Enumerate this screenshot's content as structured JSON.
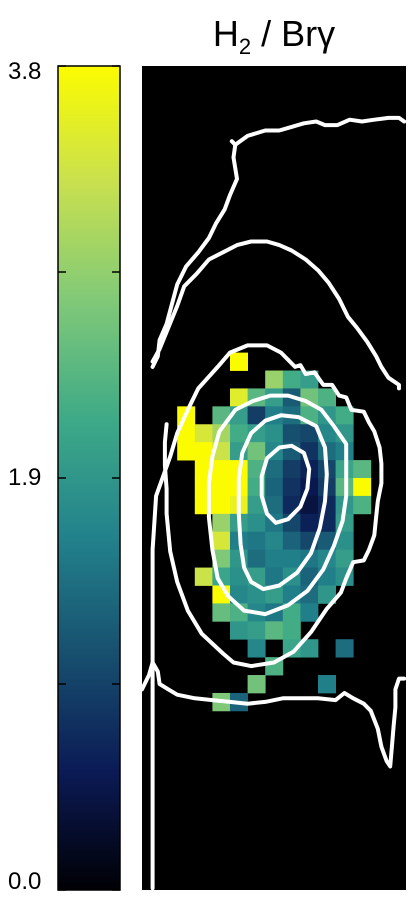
{
  "chart_data": {
    "type": "heatmap",
    "title_main": "H",
    "title_sub": "2",
    "title_rest": " / Brγ",
    "colorbar": {
      "range": [
        0.0,
        3.8
      ],
      "tick_labels": [
        "3.8",
        "1.9",
        "0.0"
      ],
      "tick_values": [
        3.8,
        1.9,
        0.0
      ],
      "minor_tick_values": [
        2.85,
        0.95
      ],
      "colormap": [
        "#000004",
        "#0b1a55",
        "#174f6e",
        "#22828c",
        "#3eaa87",
        "#80c978",
        "#c8e04f",
        "#fcfc00"
      ]
    },
    "grid": {
      "cols": 15,
      "rows": 46
    },
    "pixels": [
      [
        5,
        16,
        3.8
      ],
      [
        7,
        17,
        2.9
      ],
      [
        8,
        17,
        2.2
      ],
      [
        9,
        17,
        2.0
      ],
      [
        5,
        18,
        3.5
      ],
      [
        6,
        18,
        2.4
      ],
      [
        7,
        18,
        2.0
      ],
      [
        8,
        18,
        1.2
      ],
      [
        9,
        18,
        2.6
      ],
      [
        10,
        18,
        2.3
      ],
      [
        2,
        19,
        3.8
      ],
      [
        4,
        19,
        2.4
      ],
      [
        5,
        19,
        2.0
      ],
      [
        6,
        19,
        0.9
      ],
      [
        7,
        19,
        1.6
      ],
      [
        8,
        19,
        1.4
      ],
      [
        9,
        19,
        2.3
      ],
      [
        10,
        19,
        1.9
      ],
      [
        11,
        19,
        2.2
      ],
      [
        2,
        20,
        3.8
      ],
      [
        3,
        20,
        3.4
      ],
      [
        4,
        20,
        3.0
      ],
      [
        5,
        20,
        2.2
      ],
      [
        6,
        20,
        2.0
      ],
      [
        7,
        20,
        1.8
      ],
      [
        8,
        20,
        1.1
      ],
      [
        9,
        20,
        1.0
      ],
      [
        10,
        20,
        1.7
      ],
      [
        11,
        20,
        1.9
      ],
      [
        2,
        21,
        3.8
      ],
      [
        3,
        21,
        3.8
      ],
      [
        4,
        21,
        3.3
      ],
      [
        5,
        21,
        2.0
      ],
      [
        6,
        21,
        2.6
      ],
      [
        7,
        21,
        1.7
      ],
      [
        8,
        21,
        1.2
      ],
      [
        9,
        21,
        0.8
      ],
      [
        10,
        21,
        1.4
      ],
      [
        11,
        21,
        1.6
      ],
      [
        3,
        22,
        3.8
      ],
      [
        4,
        22,
        3.8
      ],
      [
        5,
        22,
        3.8
      ],
      [
        6,
        22,
        2.3
      ],
      [
        7,
        22,
        1.4
      ],
      [
        8,
        22,
        0.9
      ],
      [
        9,
        22,
        0.6
      ],
      [
        10,
        22,
        1.0
      ],
      [
        11,
        22,
        2.1
      ],
      [
        12,
        22,
        2.4
      ],
      [
        3,
        23,
        3.8
      ],
      [
        4,
        23,
        3.8
      ],
      [
        5,
        23,
        3.8
      ],
      [
        6,
        23,
        2.2
      ],
      [
        7,
        23,
        1.3
      ],
      [
        8,
        23,
        0.8
      ],
      [
        9,
        23,
        0.5
      ],
      [
        10,
        23,
        0.9
      ],
      [
        11,
        23,
        2.4
      ],
      [
        12,
        23,
        3.8
      ],
      [
        3,
        24,
        3.8
      ],
      [
        4,
        24,
        3.8
      ],
      [
        5,
        24,
        3.6
      ],
      [
        6,
        24,
        2.0
      ],
      [
        7,
        24,
        1.4
      ],
      [
        8,
        24,
        0.7
      ],
      [
        9,
        24,
        0.4
      ],
      [
        10,
        24,
        0.7
      ],
      [
        11,
        24,
        1.9
      ],
      [
        12,
        24,
        2.3
      ],
      [
        4,
        25,
        2.9
      ],
      [
        5,
        25,
        2.0
      ],
      [
        6,
        25,
        1.8
      ],
      [
        7,
        25,
        1.5
      ],
      [
        8,
        25,
        1.0
      ],
      [
        9,
        25,
        0.6
      ],
      [
        10,
        25,
        0.7
      ],
      [
        11,
        25,
        2.0
      ],
      [
        4,
        26,
        3.4
      ],
      [
        5,
        26,
        1.6
      ],
      [
        6,
        26,
        1.5
      ],
      [
        7,
        26,
        1.7
      ],
      [
        8,
        26,
        1.3
      ],
      [
        9,
        26,
        1.0
      ],
      [
        10,
        26,
        1.2
      ],
      [
        11,
        26,
        1.8
      ],
      [
        4,
        27,
        2.7
      ],
      [
        5,
        27,
        1.9
      ],
      [
        6,
        27,
        1.4
      ],
      [
        7,
        27,
        1.6
      ],
      [
        8,
        27,
        1.6
      ],
      [
        9,
        27,
        1.5
      ],
      [
        10,
        27,
        1.7
      ],
      [
        11,
        27,
        2.0
      ],
      [
        3,
        28,
        3.3
      ],
      [
        4,
        28,
        2.1
      ],
      [
        5,
        28,
        1.8
      ],
      [
        6,
        28,
        2.0
      ],
      [
        7,
        28,
        1.5
      ],
      [
        8,
        28,
        1.8
      ],
      [
        9,
        28,
        1.3
      ],
      [
        10,
        28,
        1.6
      ],
      [
        11,
        28,
        1.8
      ],
      [
        4,
        29,
        3.8
      ],
      [
        5,
        29,
        1.7
      ],
      [
        6,
        29,
        1.8
      ],
      [
        7,
        29,
        2.0
      ],
      [
        8,
        29,
        1.6
      ],
      [
        9,
        29,
        1.4
      ],
      [
        10,
        29,
        1.9
      ],
      [
        4,
        30,
        2.5
      ],
      [
        5,
        30,
        2.3
      ],
      [
        6,
        30,
        1.7
      ],
      [
        7,
        30,
        1.5
      ],
      [
        8,
        30,
        2.2
      ],
      [
        9,
        30,
        1.6
      ],
      [
        5,
        31,
        1.9
      ],
      [
        6,
        31,
        2.0
      ],
      [
        7,
        31,
        2.4
      ],
      [
        8,
        31,
        2.2
      ],
      [
        6,
        32,
        1.7
      ],
      [
        8,
        32,
        2.1
      ],
      [
        9,
        32,
        1.9
      ],
      [
        11,
        32,
        1.4
      ],
      [
        7,
        33,
        2.3
      ],
      [
        6,
        34,
        2.6
      ],
      [
        10,
        34,
        1.6
      ],
      [
        4,
        35,
        2.7
      ],
      [
        5,
        35,
        1.3
      ]
    ],
    "contours": [
      [
        [
          0.6,
          45.9
        ],
        [
          0.6,
          27.0
        ],
        [
          0.8,
          24.0
        ],
        [
          1.6,
          21.8
        ],
        [
          2.0,
          20.5
        ],
        [
          2.6,
          19.2
        ],
        [
          3.2,
          18.0
        ],
        [
          4.3,
          16.8
        ],
        [
          5.0,
          16.0
        ],
        [
          6.0,
          15.6
        ],
        [
          7.1,
          15.6
        ],
        [
          7.9,
          16.0
        ],
        [
          8.7,
          16.8
        ],
        [
          9.0,
          16.7
        ],
        [
          9.3,
          17.2
        ],
        [
          9.8,
          17.1
        ],
        [
          10.3,
          17.8
        ],
        [
          10.8,
          17.8
        ],
        [
          11.2,
          18.4
        ],
        [
          11.6,
          18.5
        ],
        [
          11.9,
          19.2
        ],
        [
          12.6,
          19.3
        ],
        [
          12.9,
          19.9
        ],
        [
          13.2,
          20.4
        ],
        [
          13.5,
          21.3
        ],
        [
          13.6,
          22.2
        ],
        [
          13.6,
          23.3
        ],
        [
          13.4,
          24.3
        ],
        [
          13.3,
          25.2
        ],
        [
          13.2,
          26.2
        ],
        [
          12.9,
          27.0
        ],
        [
          12.6,
          27.6
        ],
        [
          12.0,
          27.7
        ],
        [
          11.6,
          28.6
        ],
        [
          11.3,
          29.4
        ],
        [
          10.5,
          30.3
        ],
        [
          9.6,
          31.6
        ],
        [
          8.6,
          32.7
        ],
        [
          7.5,
          33.3
        ],
        [
          6.2,
          33.5
        ],
        [
          5.2,
          33.3
        ],
        [
          4.6,
          32.8
        ],
        [
          3.4,
          31.7
        ],
        [
          2.6,
          30.4
        ],
        [
          2.0,
          28.8
        ],
        [
          1.6,
          27.1
        ],
        [
          1.4,
          25.0
        ],
        [
          1.4,
          23.6
        ],
        [
          1.3,
          22.3
        ],
        [
          1.3,
          21.0
        ],
        [
          1.4,
          20.0
        ]
      ],
      [
        [
          0.6,
          16.5
        ],
        [
          1.0,
          15.8
        ],
        [
          1.5,
          14.6
        ],
        [
          2.0,
          13.4
        ],
        [
          2.4,
          12.3
        ],
        [
          3.1,
          11.6
        ],
        [
          3.8,
          10.8
        ],
        [
          4.6,
          10.4
        ],
        [
          5.4,
          10.0
        ],
        [
          6.2,
          9.8
        ],
        [
          7.1,
          9.8
        ],
        [
          7.8,
          10.0
        ],
        [
          8.5,
          10.3
        ],
        [
          9.3,
          10.8
        ],
        [
          10.0,
          11.4
        ],
        [
          10.6,
          12.1
        ],
        [
          11.2,
          13.0
        ],
        [
          11.7,
          14.0
        ],
        [
          12.2,
          14.6
        ],
        [
          12.8,
          15.4
        ],
        [
          13.3,
          16.2
        ],
        [
          13.6,
          16.8
        ],
        [
          14.0,
          17.4
        ],
        [
          14.6,
          17.8
        ],
        [
          14.6,
          18.0
        ]
      ],
      [
        [
          5.1,
          4.2
        ],
        [
          5.3,
          4.4
        ],
        [
          5.2,
          5.1
        ],
        [
          5.4,
          6.3
        ],
        [
          5.0,
          7.2
        ],
        [
          4.7,
          8.0
        ],
        [
          4.2,
          8.8
        ],
        [
          3.8,
          9.6
        ],
        [
          3.2,
          10.4
        ],
        [
          2.5,
          11.2
        ],
        [
          2.0,
          12.2
        ],
        [
          1.7,
          13.3
        ],
        [
          1.4,
          14.4
        ],
        [
          1.0,
          15.3
        ],
        [
          0.9,
          16.2
        ],
        [
          0.6,
          16.8
        ]
      ],
      [
        [
          5.3,
          4.4
        ],
        [
          6.0,
          3.9
        ],
        [
          7.0,
          3.6
        ],
        [
          7.8,
          3.6
        ],
        [
          8.5,
          3.4
        ],
        [
          9.2,
          3.2
        ],
        [
          9.9,
          3.1
        ],
        [
          10.4,
          3.3
        ],
        [
          11.1,
          3.3
        ],
        [
          11.8,
          3.0
        ],
        [
          12.5,
          3.1
        ],
        [
          13.2,
          3.0
        ],
        [
          14.0,
          2.9
        ],
        [
          14.6,
          2.9
        ],
        [
          14.9,
          3.1
        ]
      ],
      [
        [
          3.8,
          23.3
        ],
        [
          4.0,
          21.8
        ],
        [
          4.4,
          20.4
        ],
        [
          5.3,
          19.2
        ],
        [
          6.3,
          18.7
        ],
        [
          7.3,
          18.4
        ],
        [
          8.3,
          18.4
        ],
        [
          9.3,
          18.7
        ],
        [
          10.2,
          19.2
        ],
        [
          10.9,
          20.1
        ],
        [
          11.6,
          21.1
        ],
        [
          11.6,
          22.5
        ],
        [
          11.6,
          24.0
        ],
        [
          11.4,
          25.4
        ],
        [
          10.9,
          26.8
        ],
        [
          10.3,
          28.1
        ],
        [
          9.4,
          29.3
        ],
        [
          8.3,
          30.1
        ],
        [
          7.0,
          30.6
        ],
        [
          5.8,
          30.4
        ],
        [
          4.9,
          29.6
        ],
        [
          4.3,
          28.6
        ],
        [
          4.0,
          27.0
        ],
        [
          3.8,
          25.2
        ],
        [
          3.8,
          23.3
        ]
      ],
      [
        [
          5.5,
          23.0
        ],
        [
          5.7,
          21.6
        ],
        [
          6.2,
          20.5
        ],
        [
          7.0,
          19.8
        ],
        [
          7.9,
          19.5
        ],
        [
          8.9,
          19.6
        ],
        [
          9.9,
          20.1
        ],
        [
          10.4,
          21.3
        ],
        [
          10.5,
          22.8
        ],
        [
          10.4,
          24.3
        ],
        [
          10.1,
          25.8
        ],
        [
          9.6,
          27.2
        ],
        [
          8.8,
          28.3
        ],
        [
          7.8,
          29.0
        ],
        [
          6.9,
          29.2
        ],
        [
          6.2,
          28.8
        ],
        [
          5.8,
          28.0
        ],
        [
          5.6,
          26.7
        ],
        [
          5.5,
          25.0
        ],
        [
          5.5,
          23.0
        ]
      ],
      [
        [
          6.8,
          22.9
        ],
        [
          7.1,
          21.9
        ],
        [
          7.8,
          21.3
        ],
        [
          8.5,
          21.2
        ],
        [
          9.2,
          21.6
        ],
        [
          9.5,
          22.5
        ],
        [
          9.4,
          23.6
        ],
        [
          9.0,
          24.6
        ],
        [
          8.3,
          25.3
        ],
        [
          7.6,
          25.5
        ],
        [
          7.1,
          25.0
        ],
        [
          6.8,
          24.0
        ],
        [
          6.8,
          22.9
        ]
      ],
      [
        [
          0.0,
          34.8
        ],
        [
          0.4,
          34.0
        ],
        [
          0.6,
          33.3
        ],
        [
          0.9,
          33.8
        ],
        [
          1.0,
          34.5
        ],
        [
          1.5,
          34.8
        ],
        [
          2.0,
          35.1
        ],
        [
          3.0,
          35.3
        ],
        [
          4.0,
          35.4
        ],
        [
          5.0,
          35.5
        ],
        [
          6.0,
          35.6
        ],
        [
          7.0,
          35.5
        ],
        [
          8.0,
          35.3
        ],
        [
          9.0,
          35.3
        ],
        [
          10.0,
          35.3
        ],
        [
          11.0,
          35.4
        ],
        [
          11.5,
          35.0
        ],
        [
          12.0,
          35.3
        ],
        [
          12.6,
          35.6
        ],
        [
          13.0,
          36.0
        ],
        [
          13.4,
          37.0
        ],
        [
          13.6,
          38.0
        ],
        [
          13.9,
          38.8
        ],
        [
          14.1,
          39.1
        ],
        [
          14.2,
          38.0
        ],
        [
          14.3,
          36.8
        ],
        [
          14.4,
          35.8
        ],
        [
          14.4,
          34.8
        ],
        [
          14.6,
          34.2
        ],
        [
          14.9,
          34.2
        ]
      ]
    ]
  }
}
